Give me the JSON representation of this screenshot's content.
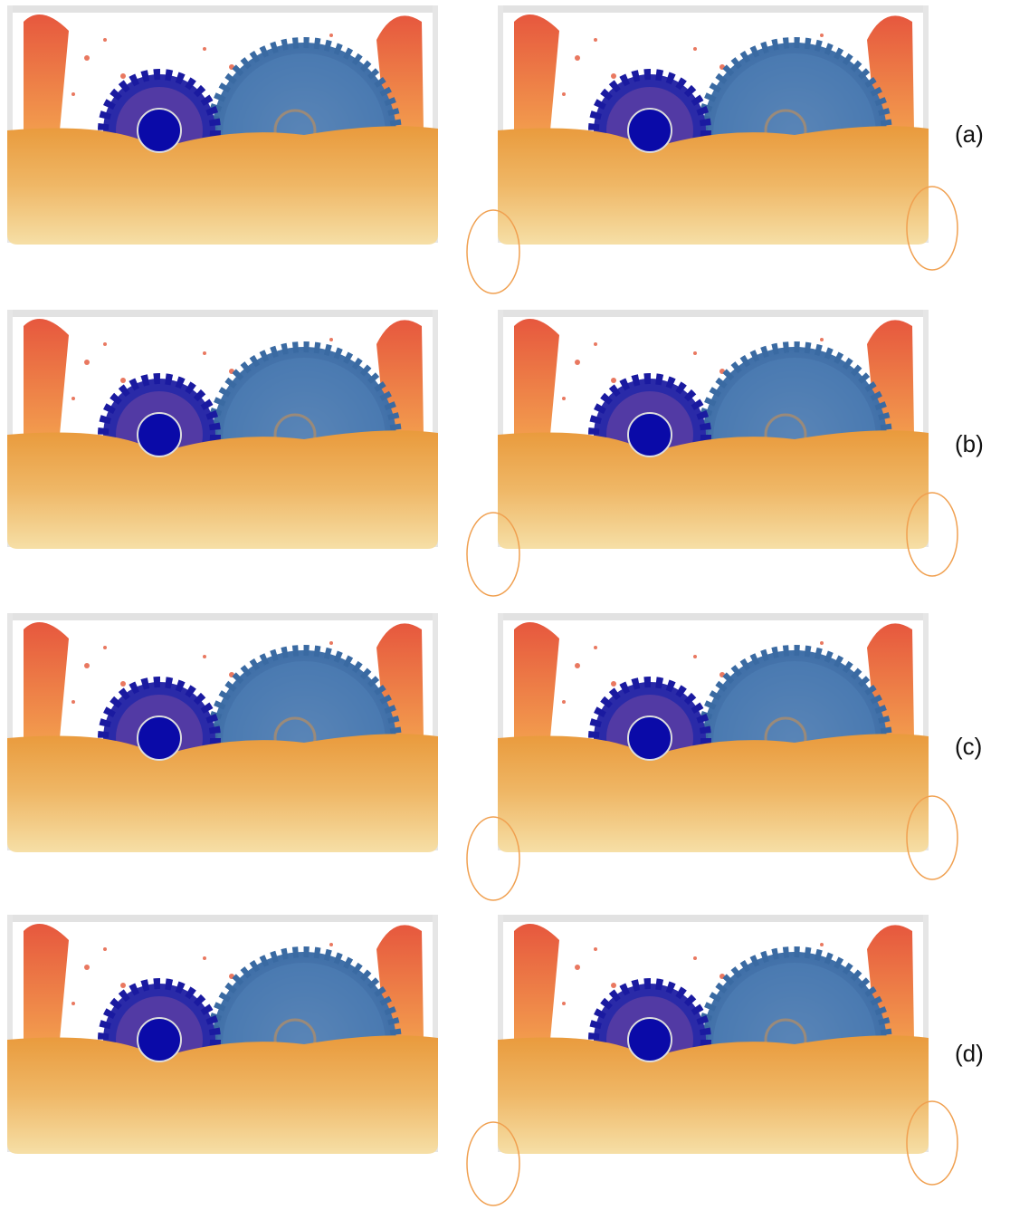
{
  "rows": [
    {
      "label": "(a)"
    },
    {
      "label": "(b)"
    },
    {
      "label": "(c)"
    },
    {
      "label": "(d)"
    }
  ]
}
